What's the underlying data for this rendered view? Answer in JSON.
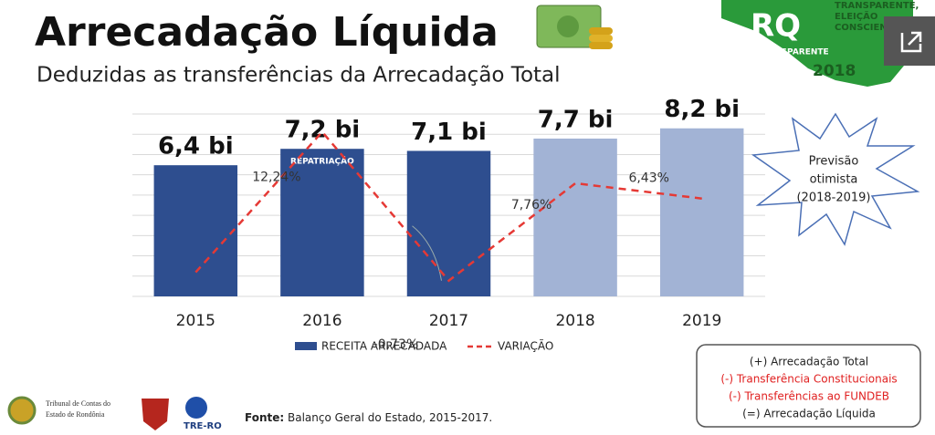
{
  "header": {
    "title": "Arrecadação Líquida",
    "subtitle": "Deduzidas as transferências da Arrecadação Total"
  },
  "chart_data": {
    "type": "bar",
    "categories": [
      "2015",
      "2016",
      "2017",
      "2018",
      "2019"
    ],
    "series": [
      {
        "name": "RECEITA ARRECADADA",
        "color": "#2e4e8f",
        "colors": [
          "#2e4e8f",
          "#2e4e8f",
          "#2e4e8f",
          "#a2b3d5",
          "#a2b3d5"
        ],
        "values": [
          6.4,
          7.2,
          7.1,
          7.7,
          8.2
        ],
        "value_labels": [
          "6,4 bi",
          "7,2 bi",
          "7,1 bi",
          "7,7 bi",
          "8,2 bi"
        ]
      },
      {
        "name": "VARIAÇÃO",
        "type": "line",
        "axis": "y2",
        "color": "#e53935",
        "values": [
          0,
          12.24,
          -0.73,
          7.76,
          6.43
        ],
        "value_labels": [
          null,
          "12,24%",
          "-0,73%",
          "7,76%",
          "6,43%"
        ]
      }
    ],
    "ylim": [
      0,
      8.9
    ],
    "y2lim": [
      -2.1,
      13.8
    ],
    "grid": true,
    "annotation": "REPATRIAÇÃO",
    "callout": [
      "Previsão",
      "otimista",
      "(2018-2019)"
    ]
  },
  "formula": [
    {
      "text": "(+) Arrecadação Total",
      "color": "#222222"
    },
    {
      "text": "(-) Transferência Constitucionais",
      "color": "#e02020"
    },
    {
      "text": "(-) Transferências ao FUNDEB",
      "color": "#e02020"
    },
    {
      "text": "(=) Arrecadação Líquida",
      "color": "#222222"
    }
  ],
  "source": {
    "label": "Fonte:",
    "text": "Balanço Geral do Estado, 2015-2017."
  },
  "logos": {
    "tce": [
      "Tribunal de Contas do",
      "Estado de Rondônia"
    ],
    "tre": "TRE-RO",
    "rq": {
      "mark": "RQ",
      "tagline": [
        "TRANSPARENTE,",
        "ELEIÇÃO",
        "CONSCIENTE"
      ],
      "word": "TRANSPARENTE",
      "year": "2018"
    }
  }
}
